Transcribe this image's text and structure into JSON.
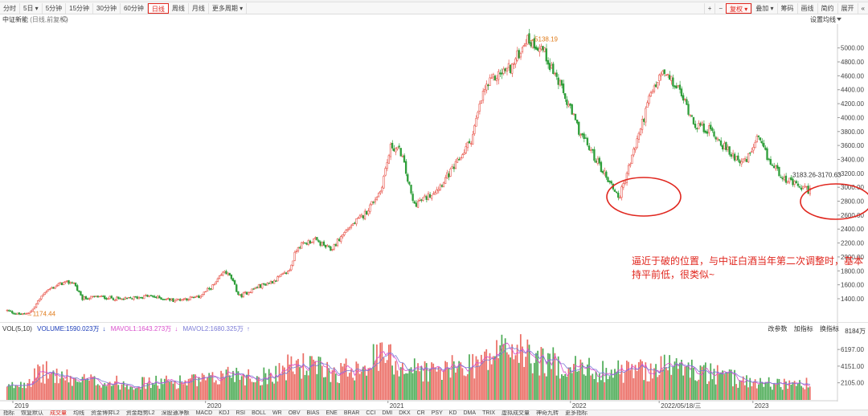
{
  "toolbar": {
    "periods": [
      {
        "label": "分时",
        "active": false
      },
      {
        "label": "5日",
        "active": false,
        "caret": true
      },
      {
        "label": "5分钟",
        "active": false
      },
      {
        "label": "15分钟",
        "active": false
      },
      {
        "label": "30分钟",
        "active": false
      },
      {
        "label": "60分钟",
        "active": false
      },
      {
        "label": "日线",
        "active": true
      },
      {
        "label": "周线",
        "active": false
      },
      {
        "label": "月线",
        "active": false
      },
      {
        "label": "更多周期",
        "active": false,
        "caret": true
      }
    ],
    "right_buttons": [
      {
        "label": "+",
        "style": "plain"
      },
      {
        "label": "−",
        "style": "plain"
      },
      {
        "label": "复权",
        "style": "red",
        "caret": true
      },
      {
        "label": "叠加",
        "style": "plain",
        "caret": true
      },
      {
        "label": "筹码",
        "style": "plain"
      },
      {
        "label": "画线",
        "style": "plain"
      },
      {
        "label": "简约",
        "style": "plain"
      },
      {
        "label": "展开",
        "style": "plain"
      },
      {
        "label": "«",
        "style": "plain"
      }
    ]
  },
  "chart": {
    "title": "中证新能",
    "subtitle": "(日线,前复权)",
    "settings_label": "设置均线",
    "high_label": "5138.19",
    "low_label": "1174.44",
    "recent_label": "3183.26-3170.63",
    "annotation_line1": "逼近于破的位置，与中证白酒当年第二次调整时，基本",
    "annotation_line2": "持平前低，很类似~"
  },
  "colors": {
    "up": "#e8544a",
    "down": "#2f9e3a",
    "annotation": "#e0261e",
    "mavol1": "#d94dcc",
    "mavol2": "#7a7ad6"
  },
  "vol_panel": {
    "vol_label": "VOL(5,10)",
    "volume_text": "VOLUME:1590.023万",
    "mavol1_text": "MAVOL1:1643.273万",
    "mavol2_text": "MAVOL2:1680.325万",
    "tool_change": "改参数",
    "tool_add": "加指标",
    "tool_swap": "换指标",
    "max_label": "8184万"
  },
  "chart_data": {
    "type": "candlestick",
    "title": "中证新能",
    "price_ticks": [
      1400,
      1600,
      1800,
      2000,
      2200,
      2400,
      2600,
      2800,
      3000,
      3200,
      3400,
      3600,
      3800,
      4000,
      4200,
      4400,
      4600,
      4800,
      5000
    ],
    "price_tick_labels": [
      "1400.00",
      "1600.00",
      "1800.00",
      "2000.00",
      "2200.00",
      "2400.00",
      "2600.00",
      "2800.00",
      "3000.00",
      "3200.00",
      "3400.00",
      "3600.00",
      "3800.00",
      "4000.00",
      "4200.00",
      "4400.00",
      "4600.00",
      "4800.00",
      "5000.00"
    ],
    "price_range": [
      1100,
      5250
    ],
    "volume_ticks": [
      2105,
      4151,
      6197
    ],
    "volume_tick_labels": [
      "2105.00",
      "4151.00",
      "6197.00"
    ],
    "volume_range": [
      0,
      8184
    ],
    "x_labels": [
      {
        "label": "2019",
        "pos": 0.0
      },
      {
        "label": "2020",
        "pos": 0.24
      },
      {
        "label": "2021",
        "pos": 0.46
      },
      {
        "label": "2022",
        "pos": 0.68
      },
      {
        "label": "2022/05/18/三",
        "pos": 0.787
      },
      {
        "label": "2023",
        "pos": 0.9
      }
    ],
    "close_path": [
      {
        "t": 0.0,
        "v": 1230
      },
      {
        "t": 0.012,
        "v": 1180
      },
      {
        "t": 0.02,
        "v": 1174
      },
      {
        "t": 0.03,
        "v": 1230
      },
      {
        "t": 0.045,
        "v": 1500
      },
      {
        "t": 0.065,
        "v": 1620
      },
      {
        "t": 0.08,
        "v": 1640
      },
      {
        "t": 0.09,
        "v": 1400
      },
      {
        "t": 0.11,
        "v": 1430
      },
      {
        "t": 0.14,
        "v": 1390
      },
      {
        "t": 0.17,
        "v": 1440
      },
      {
        "t": 0.2,
        "v": 1380
      },
      {
        "t": 0.23,
        "v": 1420
      },
      {
        "t": 0.25,
        "v": 1600
      },
      {
        "t": 0.262,
        "v": 1800
      },
      {
        "t": 0.27,
        "v": 1700
      },
      {
        "t": 0.28,
        "v": 1430
      },
      {
        "t": 0.3,
        "v": 1560
      },
      {
        "t": 0.32,
        "v": 1650
      },
      {
        "t": 0.34,
        "v": 1800
      },
      {
        "t": 0.35,
        "v": 2150
      },
      {
        "t": 0.37,
        "v": 2250
      },
      {
        "t": 0.39,
        "v": 2100
      },
      {
        "t": 0.41,
        "v": 2400
      },
      {
        "t": 0.43,
        "v": 2600
      },
      {
        "t": 0.45,
        "v": 2950
      },
      {
        "t": 0.463,
        "v": 3600
      },
      {
        "t": 0.475,
        "v": 3500
      },
      {
        "t": 0.49,
        "v": 2750
      },
      {
        "t": 0.505,
        "v": 2850
      },
      {
        "t": 0.52,
        "v": 3000
      },
      {
        "t": 0.54,
        "v": 3300
      },
      {
        "t": 0.56,
        "v": 3700
      },
      {
        "t": 0.575,
        "v": 4400
      },
      {
        "t": 0.59,
        "v": 4600
      },
      {
        "t": 0.61,
        "v": 4750
      },
      {
        "t": 0.625,
        "v": 5130
      },
      {
        "t": 0.645,
        "v": 5000
      },
      {
        "t": 0.665,
        "v": 4500
      },
      {
        "t": 0.69,
        "v": 3800
      },
      {
        "t": 0.72,
        "v": 3200
      },
      {
        "t": 0.738,
        "v": 2850
      },
      {
        "t": 0.755,
        "v": 3500
      },
      {
        "t": 0.775,
        "v": 4300
      },
      {
        "t": 0.79,
        "v": 4650
      },
      {
        "t": 0.81,
        "v": 4400
      },
      {
        "t": 0.83,
        "v": 3900
      },
      {
        "t": 0.85,
        "v": 3800
      },
      {
        "t": 0.87,
        "v": 3500
      },
      {
        "t": 0.89,
        "v": 3350
      },
      {
        "t": 0.905,
        "v": 3700
      },
      {
        "t": 0.92,
        "v": 3350
      },
      {
        "t": 0.94,
        "v": 3100
      },
      {
        "t": 0.955,
        "v": 3000
      },
      {
        "t": 0.97,
        "v": 2950
      }
    ],
    "volume_profile": [
      {
        "t": 0.0,
        "v": 1500
      },
      {
        "t": 0.045,
        "v": 3600
      },
      {
        "t": 0.08,
        "v": 2600
      },
      {
        "t": 0.15,
        "v": 2100
      },
      {
        "t": 0.25,
        "v": 2600
      },
      {
        "t": 0.27,
        "v": 3700
      },
      {
        "t": 0.3,
        "v": 2800
      },
      {
        "t": 0.35,
        "v": 4600
      },
      {
        "t": 0.4,
        "v": 3600
      },
      {
        "t": 0.455,
        "v": 5800
      },
      {
        "t": 0.48,
        "v": 4200
      },
      {
        "t": 0.52,
        "v": 3700
      },
      {
        "t": 0.58,
        "v": 5200
      },
      {
        "t": 0.6,
        "v": 7000
      },
      {
        "t": 0.64,
        "v": 5200
      },
      {
        "t": 0.7,
        "v": 3900
      },
      {
        "t": 0.74,
        "v": 3700
      },
      {
        "t": 0.78,
        "v": 4100
      },
      {
        "t": 0.8,
        "v": 4500
      },
      {
        "t": 0.85,
        "v": 3300
      },
      {
        "t": 0.9,
        "v": 2300
      },
      {
        "t": 0.97,
        "v": 2000
      }
    ]
  },
  "bottom_tabs": [
    {
      "label": "指标",
      "active": false
    },
    {
      "label": "恢复默认",
      "active": false
    },
    {
      "label": "成交量",
      "active": true
    },
    {
      "label": "均线",
      "active": false
    },
    {
      "label": "资金博弈L2",
      "active": false
    },
    {
      "label": "资金趋势L2",
      "active": false
    },
    {
      "label": "深股通净额",
      "active": false
    },
    {
      "label": "MACD",
      "active": false
    },
    {
      "label": "KDJ",
      "active": false
    },
    {
      "label": "RSI",
      "active": false
    },
    {
      "label": "BOLL",
      "active": false
    },
    {
      "label": "WR",
      "active": false
    },
    {
      "label": "OBV",
      "active": false
    },
    {
      "label": "BIAS",
      "active": false
    },
    {
      "label": "ENE",
      "active": false
    },
    {
      "label": "BRAR",
      "active": false
    },
    {
      "label": "CCI",
      "active": false
    },
    {
      "label": "DMI",
      "active": false
    },
    {
      "label": "DKX",
      "active": false
    },
    {
      "label": "CR",
      "active": false
    },
    {
      "label": "PSY",
      "active": false
    },
    {
      "label": "KD",
      "active": false
    },
    {
      "label": "DMA",
      "active": false
    },
    {
      "label": "TRIX",
      "active": false
    },
    {
      "label": "虚拟成交量",
      "active": false
    },
    {
      "label": "神奇九转",
      "active": false
    },
    {
      "label": "更多指标",
      "active": false
    }
  ]
}
